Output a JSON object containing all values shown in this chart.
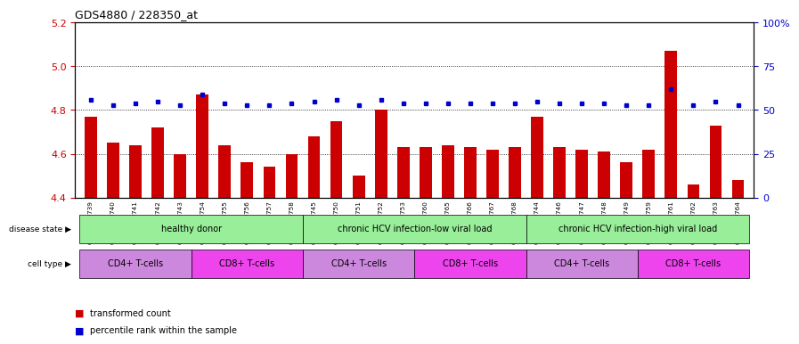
{
  "title": "GDS4880 / 228350_at",
  "samples": [
    "GSM1210739",
    "GSM1210740",
    "GSM1210741",
    "GSM1210742",
    "GSM1210743",
    "GSM1210754",
    "GSM1210755",
    "GSM1210756",
    "GSM1210757",
    "GSM1210758",
    "GSM1210745",
    "GSM1210750",
    "GSM1210751",
    "GSM1210752",
    "GSM1210753",
    "GSM1210760",
    "GSM1210765",
    "GSM1210766",
    "GSM1210767",
    "GSM1210768",
    "GSM1210744",
    "GSM1210746",
    "GSM1210747",
    "GSM1210748",
    "GSM1210749",
    "GSM1210759",
    "GSM1210761",
    "GSM1210762",
    "GSM1210763",
    "GSM1210764"
  ],
  "bar_values": [
    4.77,
    4.65,
    4.64,
    4.72,
    4.6,
    4.87,
    4.64,
    4.56,
    4.54,
    4.6,
    4.68,
    4.75,
    4.5,
    4.8,
    4.63,
    4.63,
    4.64,
    4.63,
    4.62,
    4.63,
    4.77,
    4.63,
    4.62,
    4.61,
    4.56,
    4.62,
    5.07,
    4.46,
    4.73,
    4.48
  ],
  "percentile_values": [
    56,
    53,
    54,
    55,
    53,
    59,
    54,
    53,
    53,
    54,
    55,
    56,
    53,
    56,
    54,
    54,
    54,
    54,
    54,
    54,
    55,
    54,
    54,
    54,
    53,
    53,
    62,
    53,
    55,
    53
  ],
  "ylim_left": [
    4.4,
    5.2
  ],
  "ylim_right": [
    0,
    100
  ],
  "yticks_left": [
    4.4,
    4.6,
    4.8,
    5.0,
    5.2
  ],
  "yticks_right": [
    0,
    25,
    50,
    75,
    100
  ],
  "right_tick_labels": [
    "0",
    "25",
    "50",
    "75",
    "100%"
  ],
  "bar_color": "#cc0000",
  "dot_color": "#0000cc",
  "disease_color": "#99ee99",
  "cd4_color": "#cc88dd",
  "cd8_color": "#ee44ee",
  "disease_labels": [
    "healthy donor",
    "chronic HCV infection-low viral load",
    "chronic HCV infection-high viral load"
  ],
  "disease_boundaries": [
    0,
    10,
    20,
    30
  ],
  "cell_labels": [
    "CD4+ T-cells",
    "CD8+ T-cells",
    "CD4+ T-cells",
    "CD8+ T-cells",
    "CD4+ T-cells",
    "CD8+ T-cells"
  ],
  "cell_boundaries": [
    0,
    5,
    10,
    15,
    20,
    25,
    30
  ],
  "gridlines": [
    4.6,
    4.8,
    5.0
  ],
  "legend_items": [
    {
      "symbol": "s",
      "color": "#cc0000",
      "label": "transformed count"
    },
    {
      "symbol": "s",
      "color": "#0000cc",
      "label": "percentile rank within the sample"
    }
  ]
}
